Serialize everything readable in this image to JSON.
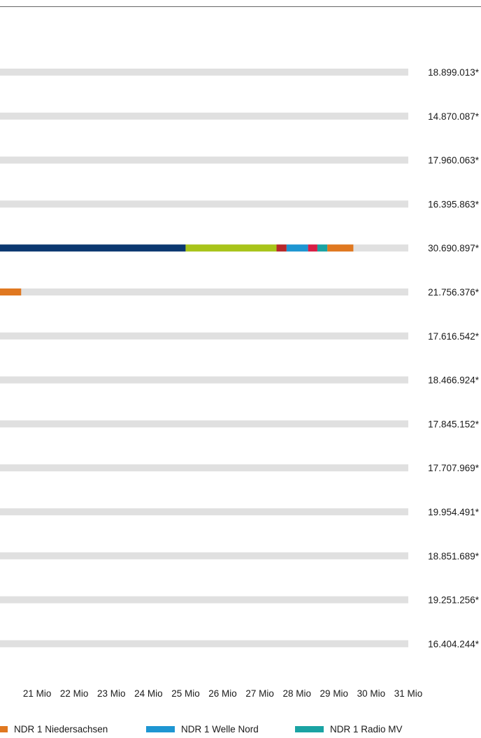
{
  "colors": {
    "track": "#e0e0e0",
    "ndr1_niedersachsen": "#e07820",
    "ndr1_welle_nord": "#1e96d2",
    "ndr1_radio_mv": "#1aa3a3",
    "navy": "#0b3870",
    "lime": "#a8c41a",
    "dark_red": "#b8282a",
    "crimson": "#d81f45"
  },
  "chart_data": {
    "type": "bar",
    "orientation": "horizontal",
    "stacked": true,
    "xlim": [
      20.0,
      31.0
    ],
    "x_ticks": [
      "21 Mio",
      "22 Mio",
      "23 Mio",
      "24 Mio",
      "25 Mio",
      "26 Mio",
      "27 Mio",
      "28 Mio",
      "29 Mio",
      "30 Mio",
      "31 Mio"
    ],
    "rows": [
      {
        "total_label": "18.899.013*",
        "total": 18.899013,
        "segments": []
      },
      {
        "total_label": "14.870.087*",
        "total": 14.870087,
        "segments": []
      },
      {
        "total_label": "17.960.063*",
        "total": 17.960063,
        "segments": []
      },
      {
        "total_label": "16.395.863*",
        "total": 16.395863,
        "segments": []
      },
      {
        "total_label": "30.690.897*",
        "total": 30.690897,
        "segments": [
          {
            "color": "navy",
            "to": 25.0
          },
          {
            "color": "lime",
            "to": 27.45
          },
          {
            "color": "dark_red",
            "to": 27.72
          },
          {
            "color": "ndr1_welle_nord",
            "to": 28.3
          },
          {
            "color": "crimson",
            "to": 28.55
          },
          {
            "color": "ndr1_radio_mv",
            "to": 28.82
          },
          {
            "color": "ndr1_niedersachsen",
            "to": 29.52
          }
        ]
      },
      {
        "total_label": "21.756.376*",
        "total": 21.756376,
        "segments": [
          {
            "color": "ndr1_niedersachsen",
            "to": 20.57
          }
        ]
      },
      {
        "total_label": "17.616.542*",
        "total": 17.616542,
        "segments": []
      },
      {
        "total_label": "18.466.924*",
        "total": 18.466924,
        "segments": []
      },
      {
        "total_label": "17.845.152*",
        "total": 17.845152,
        "segments": []
      },
      {
        "total_label": "17.707.969*",
        "total": 17.707969,
        "segments": []
      },
      {
        "total_label": "19.954.491*",
        "total": 19.954491,
        "segments": []
      },
      {
        "total_label": "18.851.689*",
        "total": 18.851689,
        "segments": []
      },
      {
        "total_label": "19.251.256*",
        "total": 19.251256,
        "segments": []
      },
      {
        "total_label": "16.404.244*",
        "total": 16.404244,
        "segments": []
      }
    ]
  },
  "legend": [
    {
      "label": "NDR 1 Niedersachsen",
      "color": "ndr1_niedersachsen"
    },
    {
      "label": "NDR 1 Welle Nord",
      "color": "ndr1_welle_nord"
    },
    {
      "label": "NDR 1 Radio MV",
      "color": "ndr1_radio_mv"
    }
  ]
}
